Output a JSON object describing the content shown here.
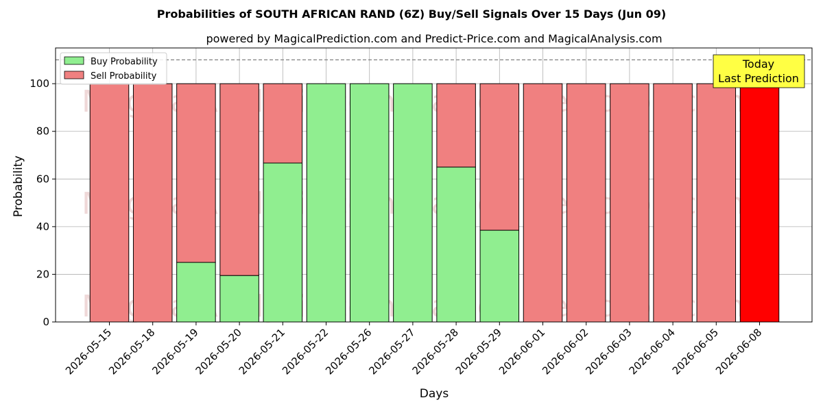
{
  "title": "Probabilities of SOUTH AFRICAN RAND (6Z) Buy/Sell Signals Over 15 Days (Jun 09)",
  "subtitle": "powered by MagicalPrediction.com and Predict-Price.com and MagicalAnalysis.com",
  "watermarks": [
    "MagicalAnalysis.com",
    "MagicalPrediction.com"
  ],
  "today_box": {
    "line1": "Today",
    "line2": "Last Prediction"
  },
  "colors": {
    "buy": "#90ee90",
    "sell": "#f08080",
    "today_sell": "#ff0000",
    "today_box": "#ffff44",
    "grid": "#b0b0b0",
    "reference_line": "#808080"
  },
  "chart_data": {
    "type": "bar",
    "stacked": true,
    "xlabel": "Days",
    "ylabel": "Probability",
    "ylim": [
      0,
      115
    ],
    "yticks": [
      0,
      20,
      40,
      60,
      80,
      100
    ],
    "grid": true,
    "legend_position": "top-left",
    "reference_line": 110,
    "categories": [
      "2026-05-15",
      "2026-05-18",
      "2026-05-19",
      "2026-05-20",
      "2026-05-21",
      "2026-05-22",
      "2026-05-26",
      "2026-05-27",
      "2026-05-28",
      "2026-05-29",
      "2026-06-01",
      "2026-06-02",
      "2026-06-03",
      "2026-06-04",
      "2026-06-05",
      "2026-06-08"
    ],
    "series": [
      {
        "name": "Buy Probability",
        "values": [
          0,
          0,
          25,
          19.5,
          66.7,
          100,
          100,
          100,
          65,
          38.5,
          0,
          0,
          0,
          0,
          0,
          0
        ]
      },
      {
        "name": "Sell Probability",
        "values": [
          100,
          100,
          75,
          80.5,
          33.3,
          0,
          0,
          0,
          35,
          61.5,
          100,
          100,
          100,
          100,
          100,
          100
        ]
      }
    ]
  }
}
